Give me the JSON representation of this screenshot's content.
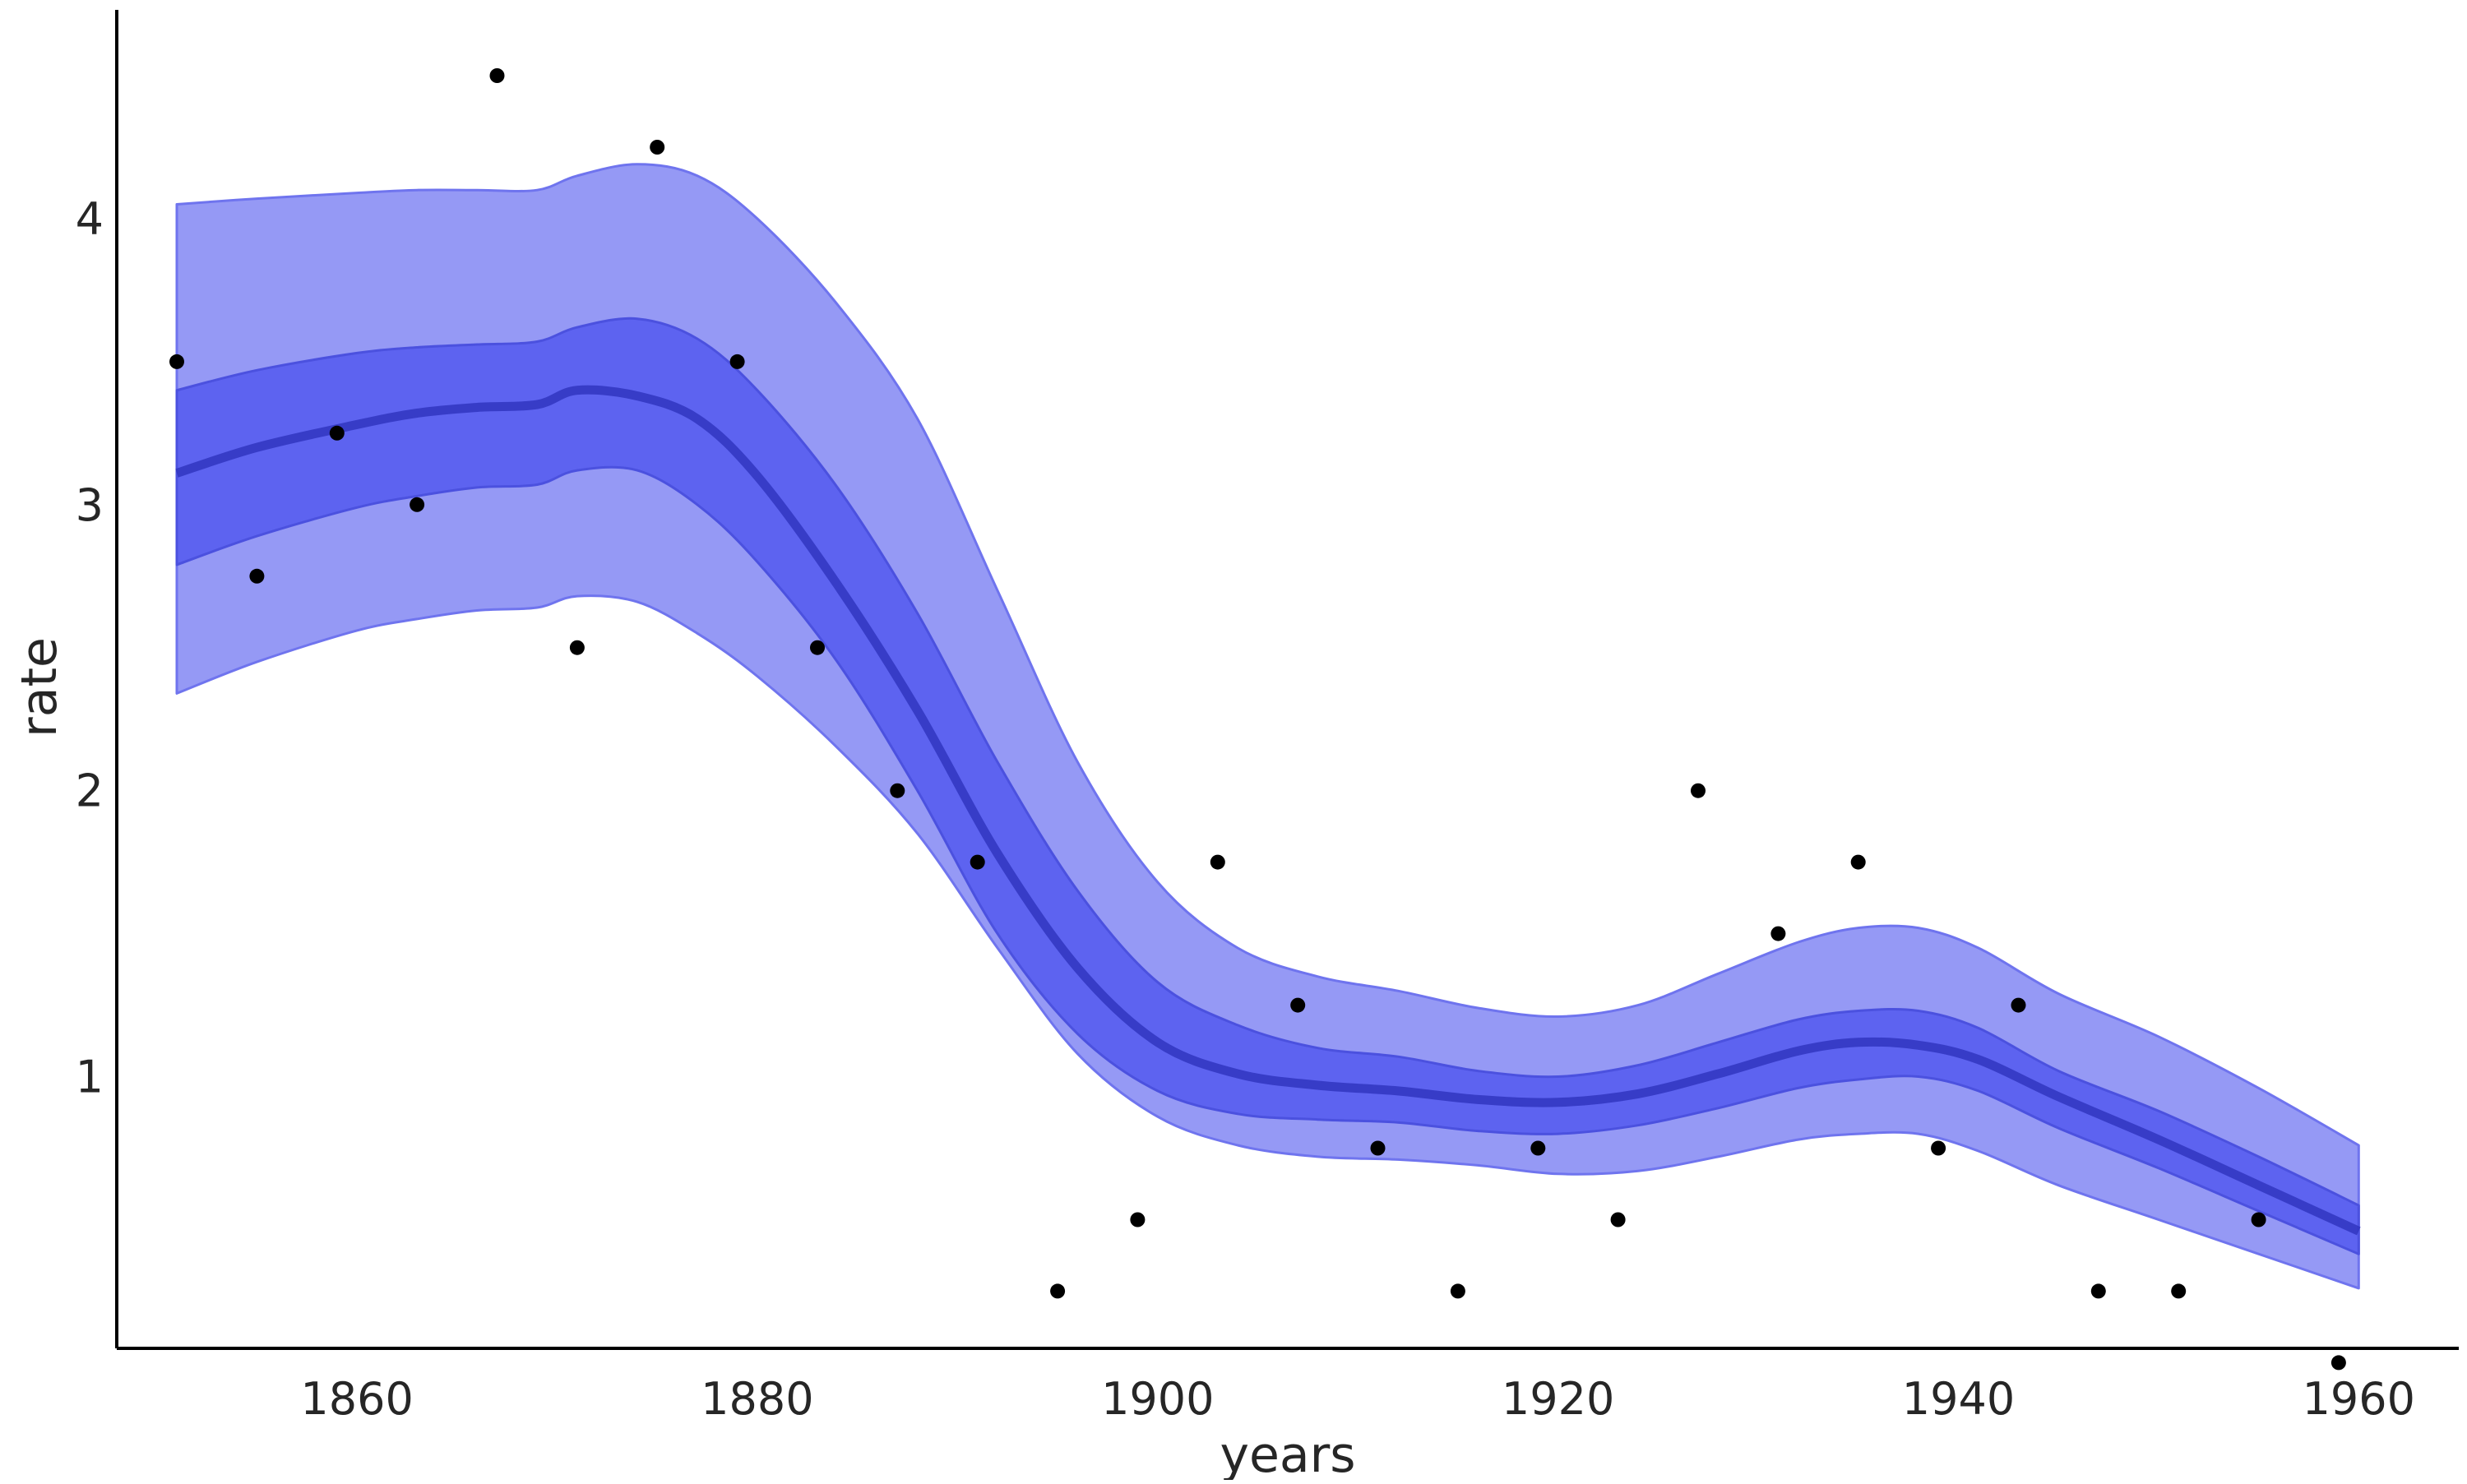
{
  "chart_data": {
    "type": "line",
    "title": "",
    "xlabel": "years",
    "ylabel": "rate",
    "xlim": [
      1848,
      1965
    ],
    "ylim": [
      0.05,
      4.73
    ],
    "x_ticks": [
      1860,
      1880,
      1900,
      1920,
      1940,
      1960
    ],
    "y_ticks": [
      1,
      2,
      3,
      4
    ],
    "grid": false,
    "legend": "none",
    "colors": {
      "outer_band": "#9599f5",
      "outer_edge": "#6f74ee",
      "inner_band": "#5d63f0",
      "inner_edge": "#4b51df",
      "mean_line": "#3035c0",
      "points": "#000000"
    },
    "series": [
      {
        "role": "outer-band",
        "x": [
          1851,
          1855,
          1860,
          1863,
          1866,
          1869,
          1871,
          1874,
          1877,
          1880,
          1884,
          1888,
          1892,
          1896,
          1900,
          1904,
          1908,
          1912,
          1916,
          1920,
          1924,
          1928,
          1932,
          1935,
          1938,
          1941,
          1945,
          1950,
          1955,
          1960
        ],
        "upper": [
          4.05,
          4.07,
          4.09,
          4.1,
          4.1,
          4.1,
          4.15,
          4.19,
          4.15,
          4.0,
          3.7,
          3.3,
          2.7,
          2.1,
          1.68,
          1.45,
          1.35,
          1.3,
          1.24,
          1.21,
          1.25,
          1.36,
          1.47,
          1.52,
          1.52,
          1.45,
          1.29,
          1.14,
          0.96,
          0.76
        ],
        "lower": [
          2.34,
          2.45,
          2.56,
          2.6,
          2.63,
          2.64,
          2.68,
          2.66,
          2.55,
          2.4,
          2.15,
          1.85,
          1.45,
          1.08,
          0.86,
          0.76,
          0.72,
          0.71,
          0.69,
          0.66,
          0.67,
          0.72,
          0.78,
          0.8,
          0.8,
          0.74,
          0.62,
          0.5,
          0.38,
          0.26
        ]
      },
      {
        "role": "inner-band",
        "x": [
          1851,
          1855,
          1860,
          1863,
          1866,
          1869,
          1871,
          1874,
          1877,
          1880,
          1884,
          1888,
          1892,
          1896,
          1900,
          1904,
          1908,
          1912,
          1916,
          1920,
          1924,
          1928,
          1932,
          1935,
          1938,
          1941,
          1945,
          1950,
          1955,
          1960
        ],
        "upper": [
          3.4,
          3.47,
          3.53,
          3.55,
          3.56,
          3.57,
          3.62,
          3.65,
          3.58,
          3.4,
          3.06,
          2.62,
          2.1,
          1.65,
          1.33,
          1.18,
          1.1,
          1.07,
          1.02,
          1.0,
          1.04,
          1.12,
          1.2,
          1.23,
          1.23,
          1.17,
          1.02,
          0.88,
          0.72,
          0.55
        ],
        "lower": [
          2.79,
          2.89,
          2.99,
          3.03,
          3.06,
          3.07,
          3.12,
          3.12,
          3.0,
          2.8,
          2.45,
          2.0,
          1.5,
          1.15,
          0.95,
          0.87,
          0.85,
          0.84,
          0.81,
          0.8,
          0.83,
          0.89,
          0.96,
          0.99,
          1.0,
          0.95,
          0.82,
          0.68,
          0.53,
          0.38
        ]
      },
      {
        "role": "mean",
        "x": [
          1851,
          1855,
          1860,
          1863,
          1866,
          1869,
          1871,
          1874,
          1877,
          1880,
          1884,
          1888,
          1892,
          1896,
          1900,
          1904,
          1908,
          1912,
          1916,
          1920,
          1924,
          1928,
          1932,
          1935,
          1938,
          1941,
          1945,
          1950,
          1955,
          1960
        ],
        "y": [
          3.11,
          3.2,
          3.28,
          3.32,
          3.34,
          3.35,
          3.4,
          3.38,
          3.3,
          3.1,
          2.72,
          2.28,
          1.78,
          1.38,
          1.12,
          1.01,
          0.97,
          0.95,
          0.92,
          0.91,
          0.94,
          1.01,
          1.09,
          1.12,
          1.11,
          1.06,
          0.93,
          0.78,
          0.62,
          0.46
        ]
      },
      {
        "role": "observed-points",
        "x": [
          1851,
          1855,
          1859,
          1863,
          1867,
          1871,
          1875,
          1879,
          1883,
          1887,
          1891,
          1895,
          1899,
          1903,
          1907,
          1911,
          1915,
          1919,
          1923,
          1927,
          1931,
          1935,
          1939,
          1943,
          1947,
          1951,
          1955,
          1959
        ],
        "y": [
          3.5,
          2.75,
          3.25,
          3.0,
          4.5,
          2.5,
          4.25,
          3.5,
          2.5,
          2.0,
          1.75,
          0.25,
          0.5,
          1.75,
          1.25,
          0.75,
          0.25,
          0.75,
          0.5,
          2.0,
          1.5,
          1.75,
          0.75,
          1.25,
          0.25,
          0.25,
          0.5,
          0.0
        ]
      }
    ]
  }
}
